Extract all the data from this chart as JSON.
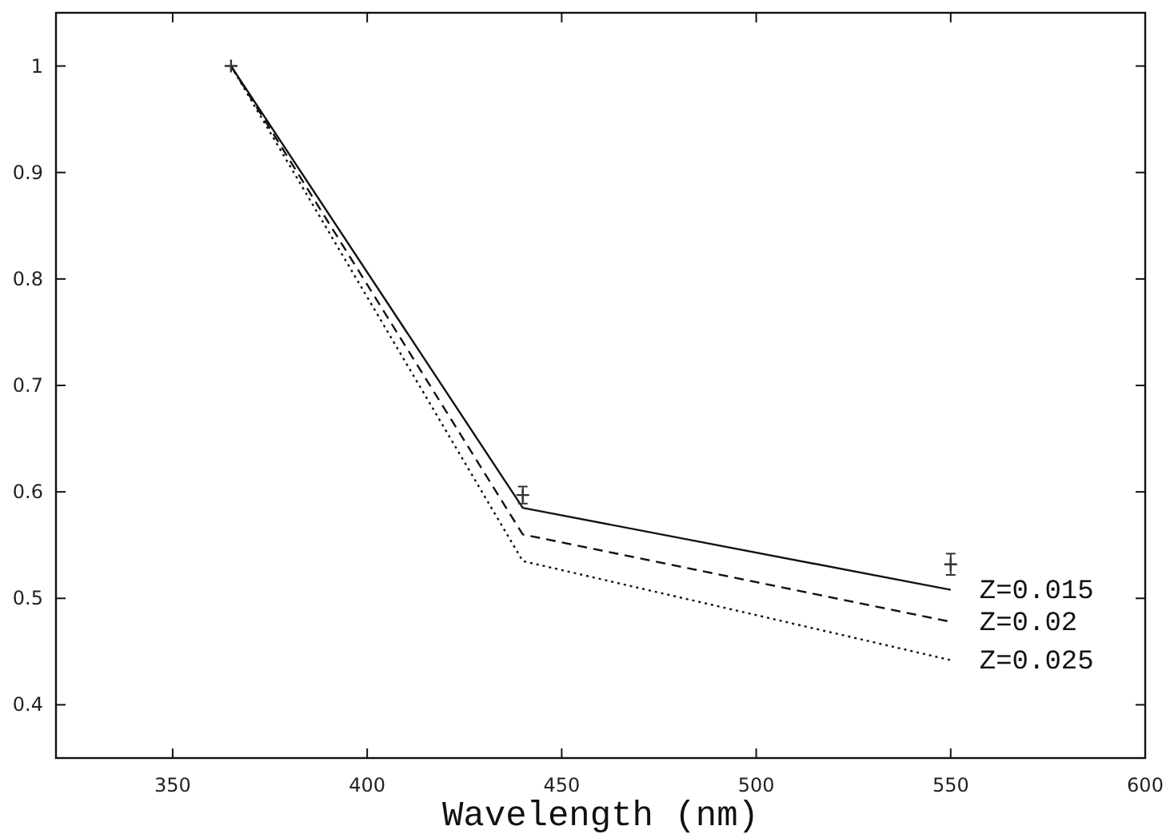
{
  "chart_data": {
    "type": "line",
    "xlabel": "Wavelength (nm)",
    "xlim": [
      320,
      600
    ],
    "xticks": [
      350,
      400,
      450,
      500,
      550,
      600
    ],
    "ylim": [
      0.35,
      1.05
    ],
    "yticks": [
      0.4,
      0.5,
      0.6,
      0.7,
      0.8,
      0.9,
      1
    ],
    "grid": false,
    "legend": "right",
    "series": [
      {
        "name": "Z=0.015",
        "color": "#111111",
        "x": [
          365,
          440,
          550
        ],
        "values": [
          1.0,
          0.585,
          0.508
        ],
        "line_style": "solid"
      },
      {
        "name": "Z=0.02",
        "color": "#111111",
        "x": [
          365,
          440,
          550
        ],
        "values": [
          1.0,
          0.56,
          0.478
        ],
        "line_style": "dashed"
      },
      {
        "name": "Z=0.025",
        "color": "#111111",
        "x": [
          365,
          440,
          550
        ],
        "values": [
          1.0,
          0.535,
          0.442
        ],
        "line_style": "dotted"
      },
      {
        "type": "scatter",
        "color": "#333333",
        "marker": "cross",
        "x": [
          365,
          440,
          550
        ],
        "values": [
          1.0,
          0.597,
          0.532
        ],
        "errors": [
          null,
          0.008,
          0.01
        ]
      }
    ]
  }
}
